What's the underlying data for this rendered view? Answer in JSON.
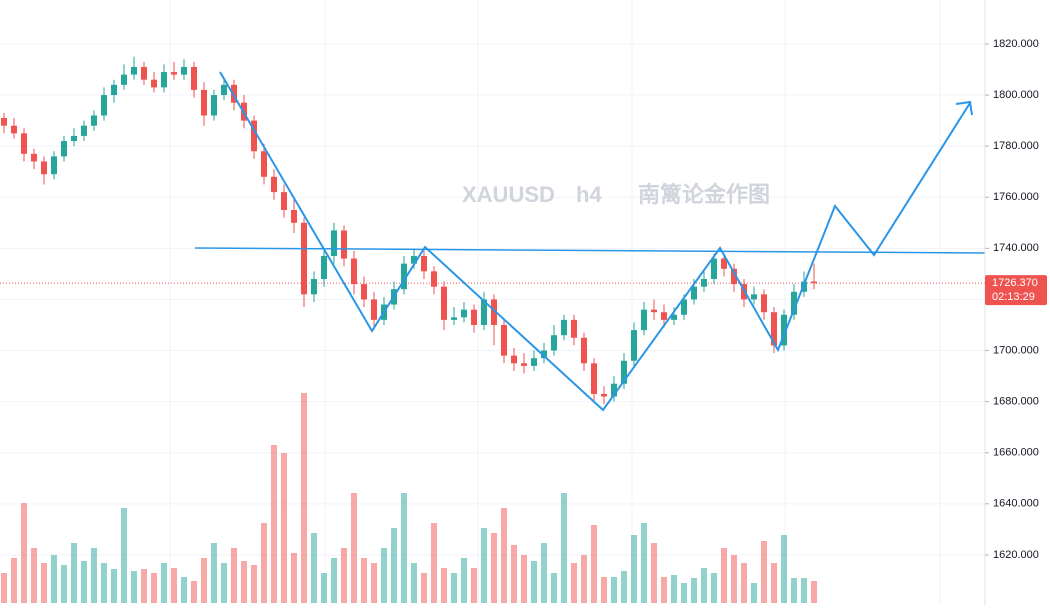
{
  "chart_data": {
    "type": "candlestick",
    "watermark": [
      "XAUUSD",
      "h4",
      "南篱论金作图"
    ],
    "up_color": "#26a69a",
    "down_color": "#ef5350",
    "ylim": [
      1600.4,
      1837.2
    ],
    "yticks": [
      {
        "value": 1620,
        "label": "1620.000"
      },
      {
        "value": 1640,
        "label": "1640.000"
      },
      {
        "value": 1660,
        "label": "1660.000"
      },
      {
        "value": 1680,
        "label": "1680.000"
      },
      {
        "value": 1700,
        "label": "1700.000"
      },
      {
        "value": 1720,
        "label": "1720.000"
      },
      {
        "value": 1740,
        "label": "1740.000"
      },
      {
        "value": 1760,
        "label": "1760.000"
      },
      {
        "value": 1780,
        "label": "1780.000"
      },
      {
        "value": 1800,
        "label": "1800.000"
      },
      {
        "value": 1820,
        "label": "1820.000"
      }
    ],
    "grid": true,
    "last_price": {
      "value": 1726.37,
      "label": "1726.370"
    },
    "countdown": "02:13:29",
    "open": [
      1791,
      1788,
      1785,
      1777,
      1774,
      1769,
      1776,
      1782,
      1784,
      1788,
      1792,
      1800,
      1804,
      1808,
      1811,
      1806,
      1803,
      1809,
      1808,
      1811,
      1802,
      1792,
      1800,
      1804,
      1797,
      1790,
      1778,
      1768,
      1762,
      1755,
      1750,
      1722,
      1728,
      1737,
      1747,
      1736,
      1726,
      1720,
      1712,
      1718,
      1724,
      1734,
      1737,
      1731,
      1725,
      1712,
      1713,
      1716,
      1710,
      1720,
      1710,
      1698,
      1695,
      1694,
      1697,
      1700,
      1706,
      1712,
      1705,
      1695,
      1683,
      1682,
      1687,
      1696,
      1708,
      1716,
      1715,
      1712,
      1714,
      1720,
      1725,
      1728,
      1736,
      1732,
      1726,
      1720,
      1722,
      1715,
      1702,
      1714,
      1723,
      1727
    ],
    "high": [
      1793,
      1791,
      1787,
      1779,
      1776,
      1778,
      1784,
      1787,
      1790,
      1794,
      1803,
      1806,
      1812,
      1815,
      1813,
      1809,
      1812,
      1813,
      1814,
      1813,
      1805,
      1802,
      1807,
      1806,
      1800,
      1792,
      1781,
      1771,
      1765,
      1759,
      1752,
      1731,
      1740,
      1750,
      1749,
      1739,
      1729,
      1723,
      1721,
      1727,
      1737,
      1740,
      1739,
      1733,
      1727,
      1717,
      1719,
      1718,
      1723,
      1722,
      1712,
      1701,
      1699,
      1700,
      1703,
      1710,
      1714,
      1714,
      1707,
      1697,
      1686,
      1690,
      1699,
      1711,
      1719,
      1720,
      1718,
      1717,
      1722,
      1728,
      1731,
      1738,
      1738,
      1734,
      1728,
      1725,
      1724,
      1717,
      1716,
      1726,
      1731,
      1734
    ],
    "low": [
      1785,
      1783,
      1774,
      1771,
      1765,
      1767,
      1774,
      1780,
      1782,
      1786,
      1790,
      1797,
      1802,
      1806,
      1804,
      1801,
      1801,
      1806,
      1806,
      1799,
      1788,
      1790,
      1798,
      1794,
      1787,
      1775,
      1765,
      1759,
      1752,
      1746,
      1717,
      1719,
      1725,
      1734,
      1733,
      1722,
      1717,
      1708,
      1710,
      1716,
      1722,
      1732,
      1728,
      1722,
      1708,
      1710,
      1711,
      1707,
      1708,
      1702,
      1695,
      1692,
      1691,
      1692,
      1695,
      1698,
      1704,
      1702,
      1692,
      1680,
      1679,
      1680,
      1685,
      1694,
      1706,
      1712,
      1709,
      1710,
      1712,
      1718,
      1723,
      1726,
      1729,
      1723,
      1717,
      1718,
      1712,
      1699,
      1700,
      1712,
      1721,
      1724
    ],
    "close": [
      1788,
      1785,
      1777,
      1774,
      1769,
      1776,
      1782,
      1784,
      1788,
      1792,
      1800,
      1804,
      1808,
      1811,
      1806,
      1803,
      1809,
      1808,
      1811,
      1802,
      1792,
      1800,
      1804,
      1797,
      1790,
      1778,
      1768,
      1762,
      1755,
      1750,
      1722,
      1728,
      1737,
      1747,
      1736,
      1726,
      1720,
      1712,
      1718,
      1724,
      1734,
      1737,
      1731,
      1725,
      1712,
      1713,
      1716,
      1710,
      1720,
      1710,
      1698,
      1695,
      1694,
      1697,
      1700,
      1706,
      1712,
      1705,
      1695,
      1683,
      1682,
      1687,
      1696,
      1708,
      1716,
      1715,
      1712,
      1714,
      1720,
      1725,
      1728,
      1736,
      1732,
      1726,
      1720,
      1722,
      1715,
      1702,
      1714,
      1723,
      1727,
      1726.37
    ],
    "volume": [
      30,
      45,
      100,
      55,
      40,
      48,
      38,
      60,
      42,
      55,
      40,
      34,
      95,
      32,
      34,
      30,
      40,
      35,
      26,
      22,
      45,
      60,
      40,
      55,
      42,
      38,
      80,
      158,
      150,
      50,
      210,
      70,
      30,
      45,
      55,
      110,
      45,
      40,
      55,
      75,
      110,
      40,
      30,
      80,
      35,
      30,
      45,
      35,
      75,
      70,
      95,
      58,
      48,
      42,
      60,
      30,
      110,
      40,
      48,
      78,
      26,
      26,
      32,
      68,
      80,
      60,
      26,
      28,
      20,
      25,
      35,
      30,
      55,
      48,
      40,
      20,
      62,
      40,
      68,
      25,
      25,
      22
    ]
  }
}
